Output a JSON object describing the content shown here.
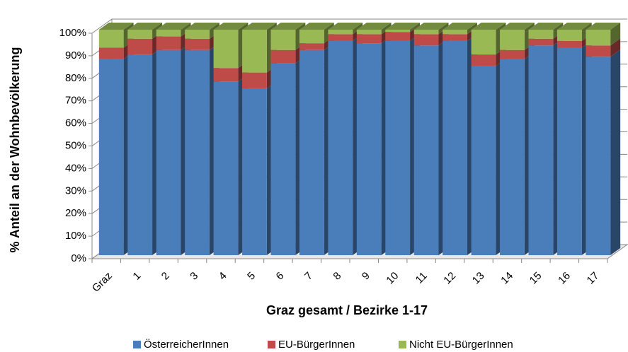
{
  "chart_data": {
    "type": "bar",
    "stacked": true,
    "y_label": "% Anteil an der Wohnbevölkerung",
    "x_label": "Graz gesamt / Bezirke 1-17",
    "categories": [
      "Graz",
      "1",
      "2",
      "3",
      "4",
      "5",
      "6",
      "7",
      "8",
      "9",
      "10",
      "11",
      "12",
      "13",
      "14",
      "15",
      "16",
      "17"
    ],
    "series": [
      {
        "name": "ÖsterreicherInnen",
        "color": "#4a7ebb",
        "values": [
          87,
          89,
          91,
          91,
          77,
          74,
          85,
          91,
          95,
          94,
          95,
          93,
          95,
          84,
          87,
          93,
          92,
          88
        ]
      },
      {
        "name": "EU-BürgerInnen",
        "color": "#be4b48",
        "values": [
          5,
          7,
          6,
          5,
          6,
          7,
          6,
          3,
          3,
          4,
          4,
          5,
          3,
          5,
          4,
          3,
          3,
          5
        ]
      },
      {
        "name": "Nicht EU-BürgerInnen",
        "color": "#98b954",
        "values": [
          8,
          4,
          3,
          4,
          17,
          19,
          9,
          6,
          2,
          2,
          1,
          2,
          2,
          11,
          9,
          4,
          5,
          7
        ]
      }
    ],
    "ylim": [
      0,
      100
    ],
    "yticks": [
      {
        "value": 0,
        "label": "0%"
      },
      {
        "value": 10,
        "label": "10%"
      },
      {
        "value": 20,
        "label": "20%"
      },
      {
        "value": 30,
        "label": "30%"
      },
      {
        "value": 40,
        "label": "40%"
      },
      {
        "value": 50,
        "label": "50%"
      },
      {
        "value": 60,
        "label": "60%"
      },
      {
        "value": 70,
        "label": "70%"
      },
      {
        "value": 80,
        "label": "80%"
      },
      {
        "value": 90,
        "label": "90%"
      },
      {
        "value": 100,
        "label": "100%"
      }
    ],
    "grid": true,
    "legend": "bottom"
  }
}
